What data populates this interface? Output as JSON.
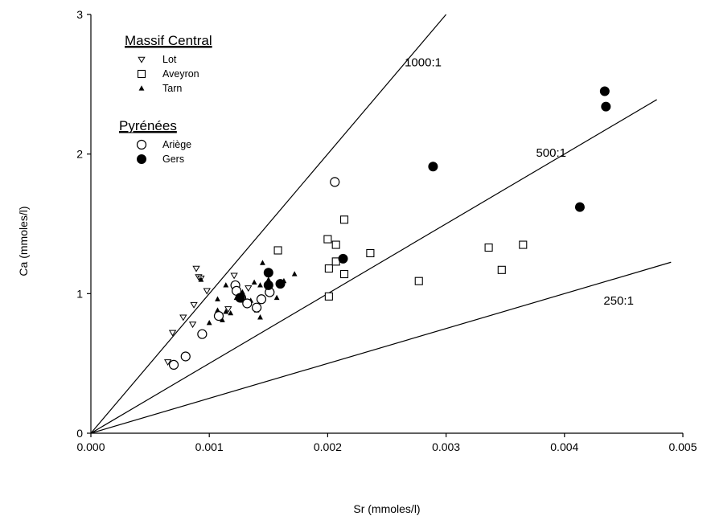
{
  "chart_data": {
    "type": "scatter",
    "xlabel": "Sr (mmoles/l)",
    "ylabel": "Ca (mmoles/l)",
    "xlim": [
      0,
      0.005
    ],
    "ylim": [
      0,
      3
    ],
    "x_ticks": [
      "0.000",
      "0.001",
      "0.002",
      "0.003",
      "0.004",
      "0.005"
    ],
    "y_ticks": [
      "0",
      "1",
      "2",
      "3"
    ],
    "grid": false,
    "legend": {
      "placement": "top-left",
      "groups": [
        {
          "title": "Massif Central",
          "entries": [
            "Lot",
            "Aveyron",
            "Tarn"
          ]
        },
        {
          "title": "Pyrénées",
          "entries": [
            "Ariège",
            "Gers"
          ]
        }
      ]
    },
    "ratio_lines": [
      {
        "label": "1000:1",
        "slope": 1000,
        "x_end": 0.003
      },
      {
        "label": "500:1",
        "slope": 500,
        "x_end": 0.00478
      },
      {
        "label": "250:1",
        "slope": 250,
        "x_end": 0.0049
      }
    ],
    "series": [
      {
        "name": "Lot",
        "marker": "triangle-down-open",
        "points": [
          [
            0.00065,
            0.51
          ],
          [
            0.00069,
            0.72
          ],
          [
            0.00078,
            0.83
          ],
          [
            0.00086,
            0.78
          ],
          [
            0.00087,
            0.92
          ],
          [
            0.00089,
            1.18
          ],
          [
            0.00091,
            1.12
          ],
          [
            0.00093,
            1.11
          ],
          [
            0.00098,
            1.02
          ],
          [
            0.00116,
            0.89
          ],
          [
            0.00121,
            1.13
          ],
          [
            0.00133,
            1.04
          ]
        ]
      },
      {
        "name": "Aveyron",
        "marker": "square-open",
        "points": [
          [
            0.00158,
            1.31
          ],
          [
            0.002,
            1.39
          ],
          [
            0.00201,
            1.18
          ],
          [
            0.00201,
            0.98
          ],
          [
            0.00207,
            1.35
          ],
          [
            0.00207,
            1.23
          ],
          [
            0.00214,
            1.53
          ],
          [
            0.00214,
            1.14
          ],
          [
            0.00236,
            1.29
          ],
          [
            0.00277,
            1.09
          ],
          [
            0.00336,
            1.33
          ],
          [
            0.00347,
            1.17
          ],
          [
            0.00365,
            1.35
          ]
        ]
      },
      {
        "name": "Tarn",
        "marker": "triangle-up-filled",
        "points": [
          [
            0.00093,
            1.1
          ],
          [
            0.001,
            0.79
          ],
          [
            0.00107,
            0.88
          ],
          [
            0.00107,
            0.96
          ],
          [
            0.00111,
            0.81
          ],
          [
            0.00114,
            0.87
          ],
          [
            0.00114,
            1.06
          ],
          [
            0.00118,
            0.86
          ],
          [
            0.00123,
            0.97
          ],
          [
            0.00128,
            1.01
          ],
          [
            0.00135,
            0.95
          ],
          [
            0.00138,
            1.08
          ],
          [
            0.0014,
            0.88
          ],
          [
            0.00143,
            1.06
          ],
          [
            0.00143,
            0.83
          ],
          [
            0.00145,
            1.22
          ],
          [
            0.0015,
            1.1
          ],
          [
            0.00157,
            0.97
          ],
          [
            0.00163,
            1.09
          ],
          [
            0.00172,
            1.14
          ]
        ]
      },
      {
        "name": "Ariège",
        "marker": "circle-open",
        "points": [
          [
            0.0007,
            0.49
          ],
          [
            0.0008,
            0.55
          ],
          [
            0.00094,
            0.71
          ],
          [
            0.00108,
            0.84
          ],
          [
            0.00122,
            1.06
          ],
          [
            0.00123,
            1.02
          ],
          [
            0.00127,
            0.97
          ],
          [
            0.00132,
            0.93
          ],
          [
            0.0014,
            0.9
          ],
          [
            0.00144,
            0.96
          ],
          [
            0.00151,
            1.01
          ],
          [
            0.00206,
            1.8
          ]
        ]
      },
      {
        "name": "Gers",
        "marker": "circle-filled",
        "points": [
          [
            0.00126,
            0.97
          ],
          [
            0.0015,
            1.15
          ],
          [
            0.0015,
            1.06
          ],
          [
            0.0016,
            1.07
          ],
          [
            0.00213,
            1.25
          ],
          [
            0.00289,
            1.91
          ],
          [
            0.00413,
            1.62
          ],
          [
            0.00434,
            2.45
          ],
          [
            0.00435,
            2.34
          ]
        ]
      }
    ]
  }
}
